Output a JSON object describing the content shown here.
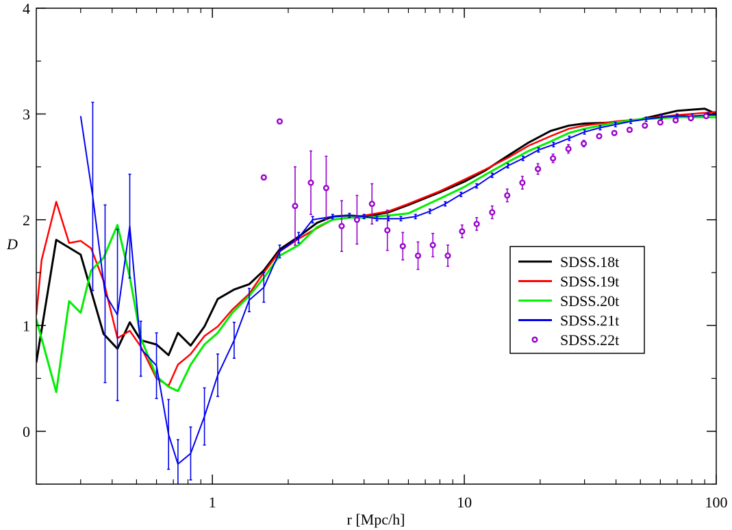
{
  "chart_data": {
    "type": "line",
    "title": "",
    "xlabel": "r [Mpc/h]",
    "ylabel": "D",
    "xscale": "log",
    "xlim": [
      0.2,
      100
    ],
    "ylim": [
      -0.5,
      4
    ],
    "x_ticks": [
      1,
      10,
      100
    ],
    "x_tick_labels": [
      "1",
      "10",
      "100"
    ],
    "y_ticks": [
      0,
      1,
      2,
      3,
      4
    ],
    "y_tick_labels": [
      "0",
      "1",
      "2",
      "3",
      "4"
    ],
    "grid": false,
    "legend_position": "center-right",
    "series": [
      {
        "name": "SDSS.18t",
        "style": "line",
        "color": "#000000",
        "points": [
          [
            0.2,
            0.65
          ],
          [
            0.24,
            1.81
          ],
          [
            0.3,
            1.67
          ],
          [
            0.37,
            0.92
          ],
          [
            0.42,
            0.78
          ],
          [
            0.47,
            1.03
          ],
          [
            0.52,
            0.86
          ],
          [
            0.6,
            0.82
          ],
          [
            0.67,
            0.72
          ],
          [
            0.73,
            0.93
          ],
          [
            0.82,
            0.81
          ],
          [
            0.93,
            0.99
          ],
          [
            1.05,
            1.25
          ],
          [
            1.22,
            1.34
          ],
          [
            1.4,
            1.39
          ],
          [
            1.6,
            1.52
          ],
          [
            1.85,
            1.72
          ],
          [
            2.2,
            1.84
          ],
          [
            2.6,
            1.97
          ],
          [
            3.0,
            2.03
          ],
          [
            3.5,
            2.04
          ],
          [
            4.0,
            2.03
          ],
          [
            4.5,
            2.05
          ],
          [
            5.0,
            2.07
          ],
          [
            6.0,
            2.14
          ],
          [
            8.0,
            2.26
          ],
          [
            10.0,
            2.36
          ],
          [
            12.0,
            2.46
          ],
          [
            15.0,
            2.61
          ],
          [
            18.0,
            2.73
          ],
          [
            22.0,
            2.84
          ],
          [
            26.0,
            2.89
          ],
          [
            30.0,
            2.91
          ],
          [
            40.0,
            2.92
          ],
          [
            50.0,
            2.95
          ],
          [
            70.0,
            3.03
          ],
          [
            90.0,
            3.05
          ],
          [
            100.0,
            3.0
          ]
        ]
      },
      {
        "name": "SDSS.19t",
        "style": "line",
        "color": "#ff0000",
        "points": [
          [
            0.2,
            1.1
          ],
          [
            0.21,
            1.62
          ],
          [
            0.24,
            2.17
          ],
          [
            0.27,
            1.78
          ],
          [
            0.3,
            1.8
          ],
          [
            0.33,
            1.73
          ],
          [
            0.37,
            1.42
          ],
          [
            0.42,
            0.88
          ],
          [
            0.47,
            0.95
          ],
          [
            0.52,
            0.8
          ],
          [
            0.6,
            0.5
          ],
          [
            0.67,
            0.43
          ],
          [
            0.73,
            0.63
          ],
          [
            0.82,
            0.73
          ],
          [
            0.93,
            0.9
          ],
          [
            1.05,
            0.99
          ],
          [
            1.2,
            1.15
          ],
          [
            1.4,
            1.3
          ],
          [
            1.6,
            1.5
          ],
          [
            1.85,
            1.7
          ],
          [
            2.2,
            1.82
          ],
          [
            2.6,
            1.92
          ],
          [
            3.0,
            2.0
          ],
          [
            3.5,
            2.02
          ],
          [
            4.0,
            2.04
          ],
          [
            4.5,
            2.06
          ],
          [
            5.0,
            2.08
          ],
          [
            6.0,
            2.15
          ],
          [
            8.0,
            2.27
          ],
          [
            10.0,
            2.38
          ],
          [
            12.0,
            2.47
          ],
          [
            15.0,
            2.59
          ],
          [
            18.0,
            2.7
          ],
          [
            22.0,
            2.79
          ],
          [
            26.0,
            2.86
          ],
          [
            30.0,
            2.89
          ],
          [
            40.0,
            2.93
          ],
          [
            50.0,
            2.95
          ],
          [
            70.0,
            2.99
          ],
          [
            90.0,
            3.01
          ],
          [
            100.0,
            3.02
          ]
        ]
      },
      {
        "name": "SDSS.20t",
        "style": "line",
        "color": "#00ee00",
        "points": [
          [
            0.2,
            1.06
          ],
          [
            0.24,
            0.37
          ],
          [
            0.27,
            1.23
          ],
          [
            0.3,
            1.12
          ],
          [
            0.33,
            1.52
          ],
          [
            0.37,
            1.64
          ],
          [
            0.42,
            1.95
          ],
          [
            0.47,
            1.46
          ],
          [
            0.52,
            0.88
          ],
          [
            0.6,
            0.52
          ],
          [
            0.67,
            0.42
          ],
          [
            0.73,
            0.38
          ],
          [
            0.82,
            0.63
          ],
          [
            0.93,
            0.82
          ],
          [
            1.05,
            0.93
          ],
          [
            1.2,
            1.12
          ],
          [
            1.4,
            1.28
          ],
          [
            1.6,
            1.45
          ],
          [
            1.85,
            1.66
          ],
          [
            2.2,
            1.76
          ],
          [
            2.6,
            1.93
          ],
          [
            3.0,
            2.0
          ],
          [
            3.5,
            2.02
          ],
          [
            4.0,
            2.02
          ],
          [
            4.5,
            2.03
          ],
          [
            5.0,
            2.04
          ],
          [
            6.0,
            2.06
          ],
          [
            8.0,
            2.2
          ],
          [
            10.0,
            2.31
          ],
          [
            12.0,
            2.42
          ],
          [
            15.0,
            2.55
          ],
          [
            18.0,
            2.65
          ],
          [
            22.0,
            2.74
          ],
          [
            26.0,
            2.82
          ],
          [
            30.0,
            2.86
          ],
          [
            40.0,
            2.92
          ],
          [
            50.0,
            2.95
          ],
          [
            70.0,
            2.97
          ],
          [
            100.0,
            2.97
          ]
        ]
      },
      {
        "name": "SDSS.21t",
        "style": "line-errorbars",
        "color": "#0000ee",
        "points": [
          [
            0.3,
            2.98
          ],
          [
            0.335,
            2.22
          ],
          [
            0.375,
            1.3
          ],
          [
            0.42,
            1.1
          ],
          [
            0.47,
            1.94
          ],
          [
            0.52,
            0.78
          ],
          [
            0.6,
            0.62
          ],
          [
            0.67,
            -0.03
          ],
          [
            0.73,
            -0.31
          ],
          [
            0.82,
            -0.21
          ],
          [
            0.93,
            0.14
          ],
          [
            1.05,
            0.53
          ],
          [
            1.22,
            0.86
          ],
          [
            1.4,
            1.24
          ],
          [
            1.6,
            1.36
          ],
          [
            1.85,
            1.7
          ],
          [
            2.2,
            1.83
          ],
          [
            2.5,
            2.0
          ],
          [
            3.0,
            2.03
          ],
          [
            3.5,
            2.04
          ],
          [
            4.0,
            2.03
          ],
          [
            4.5,
            2.01
          ],
          [
            5.0,
            2.01
          ],
          [
            5.6,
            2.01
          ],
          [
            6.4,
            2.03
          ],
          [
            7.3,
            2.08
          ],
          [
            8.4,
            2.15
          ],
          [
            9.7,
            2.24
          ],
          [
            11.2,
            2.32
          ],
          [
            12.9,
            2.42
          ],
          [
            14.9,
            2.51
          ],
          [
            17.1,
            2.58
          ],
          [
            19.7,
            2.66
          ],
          [
            22.6,
            2.71
          ],
          [
            26.1,
            2.77
          ],
          [
            30.0,
            2.83
          ],
          [
            34.6,
            2.87
          ],
          [
            39.8,
            2.9
          ],
          [
            45.8,
            2.93
          ],
          [
            52.7,
            2.95
          ],
          [
            60.7,
            2.97
          ],
          [
            69.9,
            2.98
          ],
          [
            80.4,
            2.98
          ],
          [
            92.6,
            2.99
          ],
          [
            100.0,
            2.99
          ]
        ],
        "errors": [
          null,
          0.89,
          0.84,
          0.81,
          0.49,
          0.26,
          0.31,
          0.33,
          0.23,
          0.25,
          0.27,
          0.2,
          0.17,
          0.11,
          0.14,
          0.06,
          0.05,
          0.03,
          0.02,
          0.02,
          0.02,
          0.02,
          0.02,
          0.02,
          0.02,
          0.02,
          0.02,
          0.02,
          0.02,
          0.02,
          0.02,
          0.02,
          0.02,
          0.02,
          0.02,
          0.02,
          0.02,
          0.02,
          0.02,
          0.02,
          0.02,
          0.02,
          0.02,
          0.02,
          null
        ]
      },
      {
        "name": "SDSS.22t",
        "style": "markers-errorbars",
        "color": "#9900cc",
        "points": [
          [
            1.6,
            2.4
          ],
          [
            1.85,
            2.93
          ],
          [
            2.13,
            2.13
          ],
          [
            2.46,
            2.35
          ],
          [
            2.83,
            2.3
          ],
          [
            3.26,
            1.94
          ],
          [
            3.75,
            2.0
          ],
          [
            4.3,
            2.15
          ],
          [
            4.95,
            1.9
          ],
          [
            5.7,
            1.75
          ],
          [
            6.55,
            1.66
          ],
          [
            7.5,
            1.76
          ],
          [
            8.6,
            1.66
          ],
          [
            9.8,
            1.89
          ],
          [
            11.2,
            1.96
          ],
          [
            12.9,
            2.07
          ],
          [
            14.8,
            2.23
          ],
          [
            17.0,
            2.35
          ],
          [
            19.6,
            2.48
          ],
          [
            22.5,
            2.58
          ],
          [
            25.9,
            2.67
          ],
          [
            29.8,
            2.72
          ],
          [
            34.3,
            2.79
          ],
          [
            39.4,
            2.82
          ],
          [
            45.3,
            2.85
          ],
          [
            52.1,
            2.89
          ],
          [
            60.0,
            2.92
          ],
          [
            69.0,
            2.94
          ],
          [
            79.3,
            2.96
          ],
          [
            91.2,
            2.98
          ]
        ],
        "errors": [
          0,
          0,
          0.37,
          0.3,
          0.3,
          0.24,
          0.23,
          0.19,
          0.19,
          0.13,
          0.13,
          0.11,
          0.1,
          0.06,
          0.06,
          0.06,
          0.06,
          0.06,
          0.05,
          0.04,
          0.04,
          0.03,
          0.02,
          0.02,
          0.02,
          0.02,
          0.02,
          0.02,
          0.02,
          0.02
        ]
      }
    ]
  }
}
